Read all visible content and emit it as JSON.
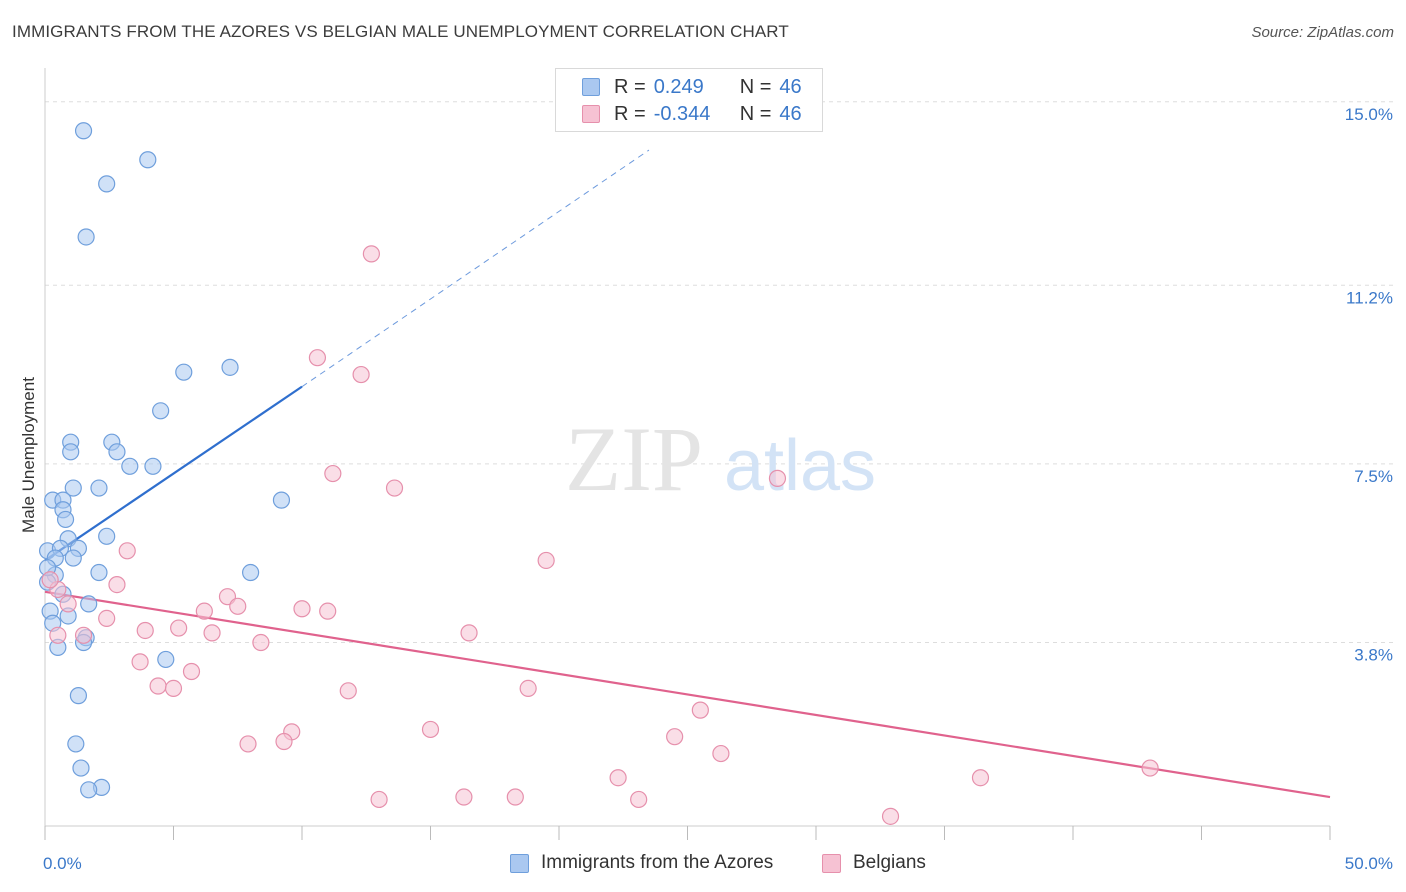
{
  "title": "IMMIGRANTS FROM THE AZORES VS BELGIAN MALE UNEMPLOYMENT CORRELATION CHART",
  "source": "Source: ZipAtlas.com",
  "watermark": {
    "zip": "ZIP",
    "atlas": "atlas"
  },
  "legend": {
    "r_label": "R =",
    "n_label": "N =",
    "rows": [
      {
        "r": "0.249",
        "n": "46",
        "fill": "#aac8f0",
        "stroke": "#6f9fdc"
      },
      {
        "r": "-0.344",
        "n": "46",
        "fill": "#f6c2d3",
        "stroke": "#e690ac"
      }
    ]
  },
  "colors": {
    "blue_fill": "#aac8f0",
    "blue_stroke": "#6f9fdc",
    "blue_line": "#2f6fce",
    "pink_fill": "#f6c2d3",
    "pink_stroke": "#e690ac",
    "pink_line": "#e0628d",
    "axis_text": "#3a78c9",
    "grid": "#dddddd"
  },
  "chart_data": {
    "type": "scatter",
    "title": "IMMIGRANTS FROM THE AZORES VS BELGIAN MALE UNEMPLOYMENT CORRELATION CHART",
    "xlabel": "",
    "ylabel": "Male Unemployment",
    "xlim": [
      0,
      50
    ],
    "ylim": [
      0,
      15.7
    ],
    "x_tick_labels": [
      {
        "value": 0,
        "label": "0.0%"
      },
      {
        "value": 50,
        "label": "50.0%"
      }
    ],
    "y_ticks": [
      {
        "value": 3.8,
        "label": "3.8%"
      },
      {
        "value": 7.5,
        "label": "7.5%"
      },
      {
        "value": 11.2,
        "label": "11.2%"
      },
      {
        "value": 15.0,
        "label": "15.0%"
      }
    ],
    "series": [
      {
        "name": "Immigrants from the Azores",
        "color": "blue",
        "points": [
          [
            1.5,
            14.4
          ],
          [
            4.0,
            13.8
          ],
          [
            2.4,
            13.3
          ],
          [
            1.6,
            12.2
          ],
          [
            5.4,
            9.4
          ],
          [
            7.2,
            9.5
          ],
          [
            4.5,
            8.6
          ],
          [
            1.0,
            7.95
          ],
          [
            1.0,
            7.75
          ],
          [
            2.6,
            7.95
          ],
          [
            2.8,
            7.75
          ],
          [
            3.3,
            7.45
          ],
          [
            4.2,
            7.45
          ],
          [
            1.1,
            7.0
          ],
          [
            2.1,
            7.0
          ],
          [
            0.3,
            6.75
          ],
          [
            0.7,
            6.75
          ],
          [
            0.7,
            6.55
          ],
          [
            0.8,
            6.35
          ],
          [
            9.2,
            6.75
          ],
          [
            2.4,
            6.0
          ],
          [
            0.9,
            5.95
          ],
          [
            1.3,
            5.75
          ],
          [
            0.1,
            5.7
          ],
          [
            0.6,
            5.75
          ],
          [
            0.4,
            5.55
          ],
          [
            1.1,
            5.55
          ],
          [
            2.1,
            5.25
          ],
          [
            8.0,
            5.25
          ],
          [
            0.4,
            5.2
          ],
          [
            0.1,
            5.05
          ],
          [
            0.7,
            4.8
          ],
          [
            1.7,
            4.6
          ],
          [
            0.2,
            4.45
          ],
          [
            0.9,
            4.35
          ],
          [
            0.3,
            4.2
          ],
          [
            1.6,
            3.9
          ],
          [
            1.5,
            3.8
          ],
          [
            0.5,
            3.7
          ],
          [
            4.7,
            3.45
          ],
          [
            1.3,
            2.7
          ],
          [
            1.2,
            1.7
          ],
          [
            1.4,
            1.2
          ],
          [
            2.2,
            0.8
          ],
          [
            1.7,
            0.75
          ],
          [
            0.1,
            5.35
          ]
        ]
      },
      {
        "name": "Belgians",
        "color": "pink",
        "points": [
          [
            12.7,
            11.85
          ],
          [
            10.6,
            9.7
          ],
          [
            12.3,
            9.35
          ],
          [
            11.2,
            7.3
          ],
          [
            13.6,
            7.0
          ],
          [
            28.5,
            7.2
          ],
          [
            3.2,
            5.7
          ],
          [
            19.5,
            5.5
          ],
          [
            2.8,
            5.0
          ],
          [
            0.5,
            4.9
          ],
          [
            7.1,
            4.75
          ],
          [
            0.9,
            4.6
          ],
          [
            7.5,
            4.55
          ],
          [
            6.2,
            4.45
          ],
          [
            10.0,
            4.5
          ],
          [
            11.0,
            4.45
          ],
          [
            2.4,
            4.3
          ],
          [
            5.2,
            4.1
          ],
          [
            3.9,
            4.05
          ],
          [
            6.5,
            4.0
          ],
          [
            16.5,
            4.0
          ],
          [
            0.5,
            3.95
          ],
          [
            1.5,
            3.95
          ],
          [
            8.4,
            3.8
          ],
          [
            3.7,
            3.4
          ],
          [
            5.7,
            3.2
          ],
          [
            4.4,
            2.9
          ],
          [
            5.0,
            2.85
          ],
          [
            11.8,
            2.8
          ],
          [
            18.8,
            2.85
          ],
          [
            25.5,
            2.4
          ],
          [
            15.0,
            2.0
          ],
          [
            9.6,
            1.95
          ],
          [
            24.5,
            1.85
          ],
          [
            7.9,
            1.7
          ],
          [
            9.3,
            1.75
          ],
          [
            26.3,
            1.5
          ],
          [
            22.3,
            1.0
          ],
          [
            36.4,
            1.0
          ],
          [
            43.0,
            1.2
          ],
          [
            13.0,
            0.55
          ],
          [
            16.3,
            0.6
          ],
          [
            18.3,
            0.6
          ],
          [
            23.1,
            0.55
          ],
          [
            32.9,
            0.2
          ],
          [
            0.2,
            5.1
          ]
        ]
      }
    ],
    "trend_lines": [
      {
        "series": "Immigrants from the Azores",
        "solid": [
          [
            0,
            5.5
          ],
          [
            10.0,
            9.1
          ]
        ],
        "dashed": [
          [
            10.0,
            9.1
          ],
          [
            23.5,
            14.0
          ]
        ]
      },
      {
        "series": "Belgians",
        "solid": [
          [
            0,
            4.85
          ],
          [
            50,
            0.6
          ]
        ]
      }
    ],
    "legend_position": "top-center",
    "grid": true
  },
  "bottom_legend": [
    {
      "label": "Immigrants from the Azores"
    },
    {
      "label": "Belgians"
    }
  ]
}
